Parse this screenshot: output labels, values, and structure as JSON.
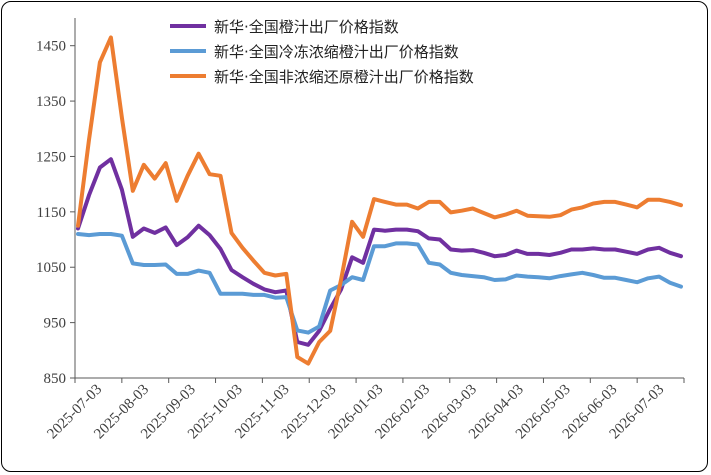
{
  "chart_data": {
    "type": "line",
    "title": "",
    "xlabel": "",
    "ylabel": "",
    "ylim": [
      850,
      1500
    ],
    "yticks": [
      850,
      950,
      1050,
      1150,
      1250,
      1350,
      1450
    ],
    "xtick_labels": [
      "2025-07-03",
      "2025-08-03",
      "2025-09-03",
      "2025-10-03",
      "2025-11-03",
      "2025-12-03",
      "2026-01-03",
      "2026-02-03",
      "2026-03-03",
      "2026-04-03",
      "2026-05-03",
      "2026-06-03",
      "2026-07-03"
    ],
    "legend_position": "top",
    "grid": false,
    "series": [
      {
        "name": "新华·全国橙汁出厂价格指数",
        "color": "#7030a0",
        "values": [
          1120,
          1180,
          1230,
          1245,
          1190,
          1105,
          1120,
          1112,
          1122,
          1090,
          1104,
          1125,
          1108,
          1083,
          1045,
          1032,
          1020,
          1010,
          1005,
          1008,
          915,
          910,
          935,
          975,
          1010,
          1068,
          1058,
          1118,
          1116,
          1118,
          1118,
          1115,
          1102,
          1100,
          1082,
          1080,
          1081,
          1076,
          1070,
          1072,
          1080,
          1074,
          1074,
          1072,
          1076,
          1082,
          1082,
          1084,
          1082,
          1082,
          1078,
          1074,
          1082,
          1085,
          1076,
          1070
        ]
      },
      {
        "name": "新华·全国冷冻浓缩橙汁出厂价格指数",
        "color": "#5b9bd5",
        "values": [
          1110,
          1108,
          1110,
          1110,
          1107,
          1057,
          1054,
          1054,
          1055,
          1038,
          1038,
          1044,
          1040,
          1002,
          1002,
          1002,
          1000,
          1000,
          995,
          996,
          936,
          932,
          943,
          1008,
          1018,
          1032,
          1027,
          1088,
          1088,
          1093,
          1093,
          1091,
          1058,
          1055,
          1040,
          1036,
          1034,
          1032,
          1027,
          1028,
          1035,
          1033,
          1032,
          1030,
          1034,
          1037,
          1040,
          1036,
          1031,
          1031,
          1027,
          1023,
          1030,
          1033,
          1022,
          1015
        ]
      },
      {
        "name": "新华·全国非浓缩还原橙汁出厂价格指数",
        "color": "#ed7d31",
        "values": [
          1125,
          1280,
          1420,
          1465,
          1320,
          1188,
          1235,
          1210,
          1238,
          1170,
          1215,
          1255,
          1218,
          1215,
          1112,
          1085,
          1062,
          1040,
          1035,
          1038,
          888,
          876,
          915,
          935,
          1028,
          1132,
          1105,
          1173,
          1168,
          1163,
          1163,
          1156,
          1168,
          1168,
          1149,
          1152,
          1156,
          1148,
          1140,
          1145,
          1152,
          1143,
          1142,
          1141,
          1144,
          1154,
          1158,
          1165,
          1168,
          1168,
          1163,
          1158,
          1172,
          1172,
          1168,
          1162
        ]
      }
    ]
  }
}
